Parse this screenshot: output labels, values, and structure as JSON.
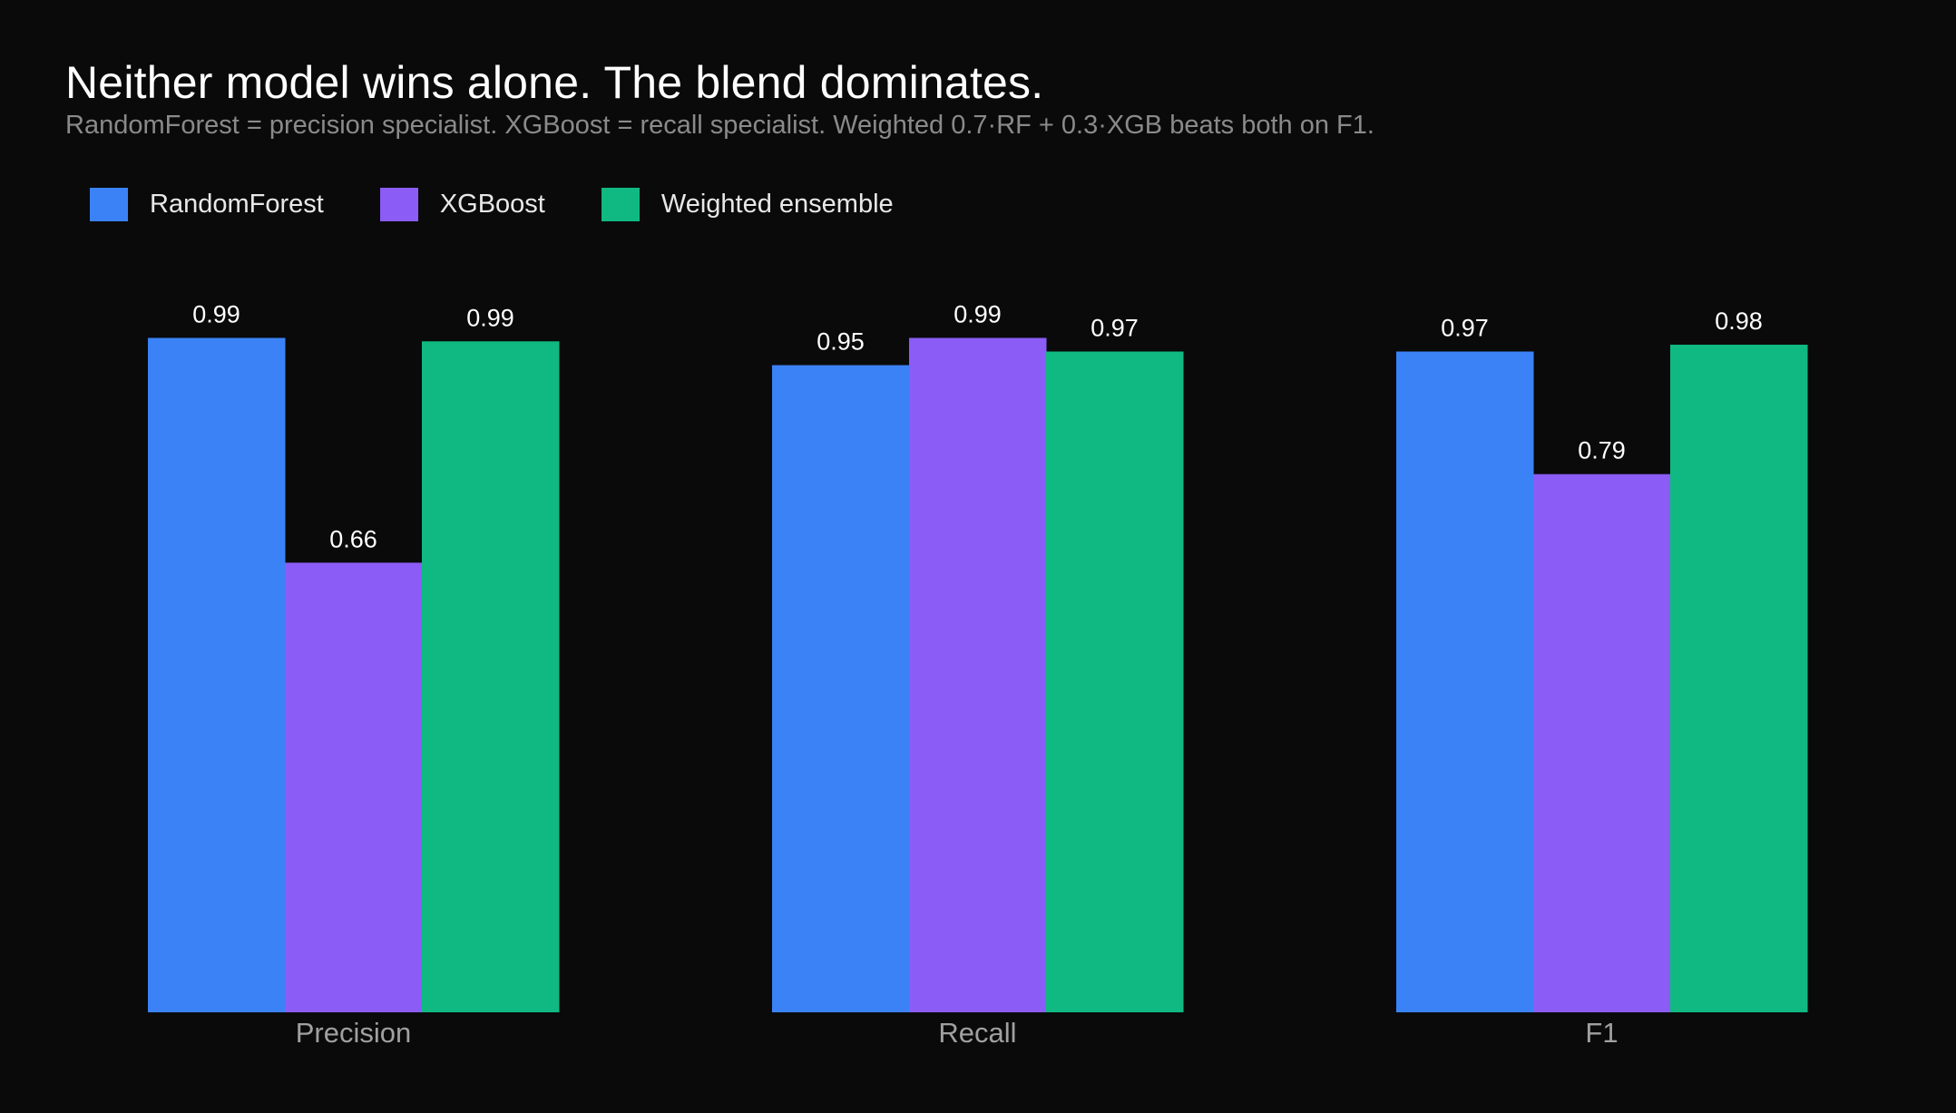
{
  "chart_data": {
    "type": "bar",
    "title": "Neither model wins alone. The blend dominates.",
    "subtitle": "RandomForest = precision specialist. XGBoost = recall specialist. Weighted 0.7·RF + 0.3·XGB beats both on F1.",
    "categories": [
      "Precision",
      "Recall",
      "F1"
    ],
    "series": [
      {
        "name": "RandomForest",
        "color": "#3b82f6",
        "values": [
          0.99,
          0.95,
          0.97
        ],
        "labels": [
          "0.99",
          "0.95",
          "0.97"
        ]
      },
      {
        "name": "XGBoost",
        "color": "#8b5cf6",
        "values": [
          0.66,
          0.99,
          0.79
        ],
        "labels": [
          "0.66",
          "0.99",
          "0.79"
        ]
      },
      {
        "name": "Weighted ensemble",
        "color": "#10b981",
        "values": [
          0.985,
          0.97,
          0.98
        ],
        "labels": [
          "0.99",
          "0.97",
          "0.98"
        ]
      }
    ],
    "ylim": [
      0,
      1
    ],
    "grid": false,
    "legend_position": "top-left",
    "xlabel": "",
    "ylabel": ""
  }
}
